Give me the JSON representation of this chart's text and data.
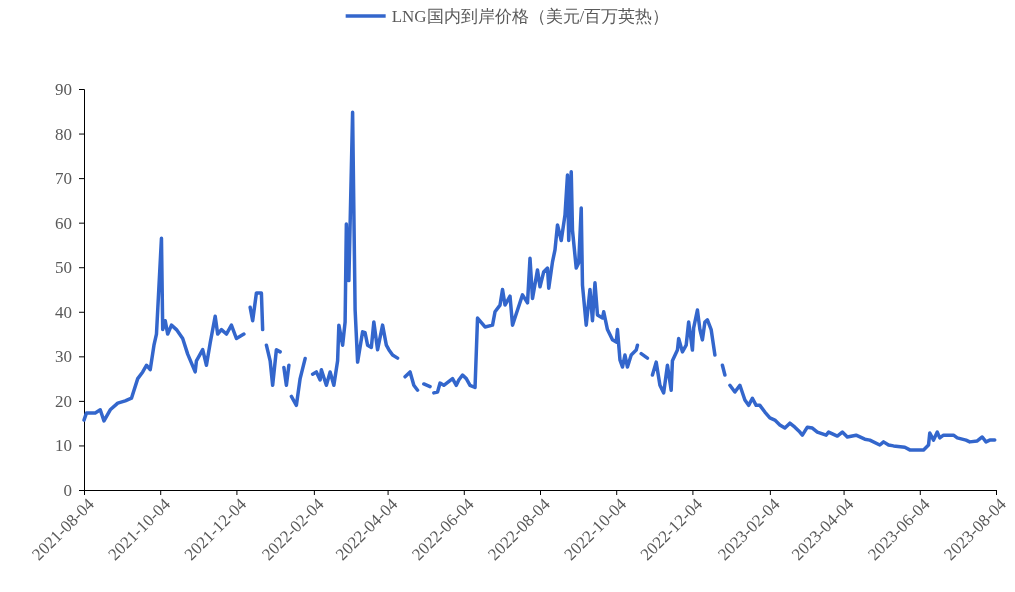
{
  "chart_data": {
    "type": "line",
    "legend": "top",
    "grid": false,
    "xlim": [
      "2021-08-04",
      "2023-08-04"
    ],
    "xticks": [
      "2021-08-04",
      "2021-10-04",
      "2021-12-04",
      "2022-02-04",
      "2022-04-04",
      "2022-06-04",
      "2022-08-04",
      "2022-10-04",
      "2022-12-04",
      "2023-02-04",
      "2023-04-04",
      "2023-06-04",
      "2023-08-04"
    ],
    "ylim": [
      0,
      90
    ],
    "yticks": [
      0,
      10,
      20,
      30,
      40,
      50,
      60,
      70,
      80,
      90
    ],
    "series": [
      {
        "name": "LNG国内到岸价格（美元/百万英热）",
        "color": "#3366cc",
        "x": [
          "2021-08-04",
          "2021-08-06",
          "2021-08-13",
          "2021-08-17",
          "2021-08-20",
          "2021-08-25",
          "2021-08-31",
          "2021-09-06",
          "2021-09-11",
          "2021-09-16",
          "2021-09-20",
          "2021-09-23",
          "2021-09-26",
          "2021-09-29",
          "2021-10-01",
          "2021-10-05",
          "2021-10-06",
          "2021-10-08",
          "2021-10-10",
          "2021-10-13",
          "2021-10-17",
          "2021-10-22",
          "2021-10-26",
          "2021-11-01",
          "2021-11-02",
          "2021-11-07",
          "2021-11-10",
          "2021-11-13",
          "2021-11-17",
          "2021-11-19",
          "2021-11-22",
          "2021-11-26",
          "2021-11-30",
          "2021-12-04",
          "2021-12-10",
          "2021-12-12",
          "2021-12-15",
          "2021-12-17",
          "2021-12-20",
          "2021-12-24",
          "2021-12-25",
          "2021-12-26",
          "2021-12-28",
          "2021-12-31",
          "2022-01-02",
          "2022-01-05",
          "2022-01-08",
          "2022-01-09",
          "2022-01-11",
          "2022-01-13",
          "2022-01-15",
          "2022-01-16",
          "2022-01-17",
          "2022-01-21",
          "2022-01-24",
          "2022-01-28",
          "2022-01-31",
          "2022-02-03",
          "2022-02-06",
          "2022-02-09",
          "2022-02-10",
          "2022-02-14",
          "2022-02-17",
          "2022-02-20",
          "2022-02-23",
          "2022-02-24",
          "2022-02-27",
          "2022-03-01",
          "2022-03-02",
          "2022-03-04",
          "2022-03-07",
          "2022-03-09",
          "2022-03-11",
          "2022-03-15",
          "2022-03-17",
          "2022-03-19",
          "2022-03-22",
          "2022-03-24",
          "2022-03-27",
          "2022-03-31",
          "2022-04-03",
          "2022-04-05",
          "2022-04-08",
          "2022-04-12",
          "2022-04-15",
          "2022-04-18",
          "2022-04-22",
          "2022-04-25",
          "2022-04-28",
          "2022-05-01",
          "2022-05-03",
          "2022-05-08",
          "2022-05-09",
          "2022-05-11",
          "2022-05-14",
          "2022-05-16",
          "2022-05-19",
          "2022-05-26",
          "2022-05-29",
          "2022-05-31",
          "2022-06-03",
          "2022-06-06",
          "2022-06-09",
          "2022-06-13",
          "2022-06-15",
          "2022-06-21",
          "2022-06-27",
          "2022-06-29",
          "2022-07-03",
          "2022-07-05",
          "2022-07-07",
          "2022-07-11",
          "2022-07-13",
          "2022-07-17",
          "2022-07-21",
          "2022-07-25",
          "2022-07-27",
          "2022-07-29",
          "2022-08-02",
          "2022-08-04",
          "2022-08-07",
          "2022-08-10",
          "2022-08-11",
          "2022-08-14",
          "2022-08-16",
          "2022-08-18",
          "2022-08-21",
          "2022-08-24",
          "2022-08-26",
          "2022-08-27",
          "2022-08-29",
          "2022-08-30",
          "2022-09-02",
          "2022-09-04",
          "2022-09-06",
          "2022-09-07",
          "2022-09-10",
          "2022-09-13",
          "2022-09-15",
          "2022-09-17",
          "2022-09-19",
          "2022-09-23",
          "2022-09-24",
          "2022-09-27",
          "2022-10-01",
          "2022-10-04",
          "2022-10-05",
          "2022-10-07",
          "2022-10-09",
          "2022-10-11",
          "2022-10-13",
          "2022-10-16",
          "2022-10-20",
          "2022-10-21",
          "2022-10-23",
          "2022-10-24",
          "2022-10-29",
          "2022-10-31",
          "2022-11-02",
          "2022-11-05",
          "2022-11-08",
          "2022-11-11",
          "2022-11-14",
          "2022-11-17",
          "2022-11-18",
          "2022-11-22",
          "2022-11-23",
          "2022-11-26",
          "2022-11-29",
          "2022-12-01",
          "2022-12-04",
          "2022-12-05",
          "2022-12-08",
          "2022-12-10",
          "2022-12-12",
          "2022-12-14",
          "2022-12-16",
          "2022-12-19",
          "2022-12-22",
          "2022-12-25",
          "2022-12-28",
          "2022-12-30",
          "2023-01-01",
          "2023-01-03",
          "2023-01-07",
          "2023-01-11",
          "2023-01-15",
          "2023-01-18",
          "2023-01-21",
          "2023-01-24",
          "2023-01-27",
          "2023-01-31",
          "2023-02-04",
          "2023-02-08",
          "2023-02-12",
          "2023-02-16",
          "2023-02-20",
          "2023-02-24",
          "2023-02-28",
          "2023-03-02",
          "2023-03-06",
          "2023-03-10",
          "2023-03-14",
          "2023-03-21",
          "2023-03-23",
          "2023-03-30",
          "2023-04-03",
          "2023-04-07",
          "2023-04-14",
          "2023-04-21",
          "2023-04-25",
          "2023-05-03",
          "2023-05-06",
          "2023-05-10",
          "2023-05-14",
          "2023-05-23",
          "2023-05-27",
          "2023-06-04",
          "2023-06-07",
          "2023-06-11",
          "2023-06-12",
          "2023-06-15",
          "2023-06-18",
          "2023-06-20",
          "2023-06-23",
          "2023-07-01",
          "2023-07-04",
          "2023-07-11",
          "2023-07-14",
          "2023-07-20",
          "2023-07-24",
          "2023-07-27",
          "2023-07-30",
          "2023-08-03"
        ],
        "values": [
          15.7,
          17.3,
          17.3,
          18,
          15.5,
          18,
          19.5,
          20,
          20.6,
          25,
          26.5,
          28,
          27,
          32.5,
          35,
          56.5,
          36,
          38,
          35,
          37,
          36,
          34,
          30.5,
          26.5,
          29,
          31.5,
          28,
          33,
          39,
          35,
          36,
          35,
          37,
          34,
          35,
          null,
          41,
          38,
          44.2,
          44.2,
          36,
          null,
          32.5,
          29,
          23.5,
          31.5,
          31,
          null,
          27.5,
          23.5,
          28,
          null,
          21,
          19,
          25,
          29.5,
          null,
          26,
          26.5,
          24.7,
          27,
          23.5,
          26.5,
          23.5,
          29,
          37,
          32.5,
          37.7,
          59.7,
          47,
          84.8,
          40.5,
          28.7,
          35.5,
          35.3,
          32.5,
          32,
          37.7,
          31.5,
          37,
          32.5,
          31.5,
          30.3,
          29.6,
          null,
          25.4,
          26.5,
          23.5,
          22.4,
          null,
          23.8,
          23.2,
          null,
          21.8,
          22,
          24,
          23.5,
          25,
          23.5,
          24.7,
          25.8,
          25,
          23.5,
          23,
          38.6,
          36.6,
          37,
          40,
          41.5,
          45,
          41.5,
          43.5,
          37,
          40.4,
          43.8,
          42,
          52,
          43,
          49.4,
          45.6,
          49,
          49.8,
          45.3,
          51.2,
          53.9,
          59.5,
          56,
          61.7,
          70.7,
          56,
          71.4,
          58.3,
          49.8,
          51,
          63.3,
          46,
          37,
          45,
          38,
          46.5,
          39.3,
          38.6,
          40,
          36,
          33.7,
          33.2,
          36,
          29.2,
          27.6,
          30.3,
          27.6,
          30.3,
          31.4,
          32.5,
          null,
          30.6,
          29.6,
          null,
          25.8,
          28.7,
          23.5,
          21.8,
          28,
          22.4,
          29,
          31.4,
          34,
          31,
          32.5,
          37.7,
          31.4,
          36.4,
          40.4,
          36,
          33.7,
          37.7,
          38.2,
          36,
          30.3,
          null,
          28,
          25.8,
          null,
          23.5,
          22,
          23.5,
          20.2,
          19,
          20.6,
          19,
          19,
          17.5,
          16.2,
          15.7,
          14.6,
          13.9,
          15,
          14.1,
          13,
          12.3,
          14.1,
          13.9,
          13,
          12.3,
          13,
          12.1,
          13,
          11.9,
          12.3,
          11.4,
          11.2,
          10.1,
          10.8,
          10.1,
          9.9,
          9.6,
          9,
          9,
          9,
          10.1,
          12.8,
          11.2,
          13,
          11.7,
          12.3,
          12.3,
          11.7,
          11.2,
          10.8,
          11,
          11.9,
          10.8,
          11.2,
          11.2
        ]
      }
    ]
  }
}
